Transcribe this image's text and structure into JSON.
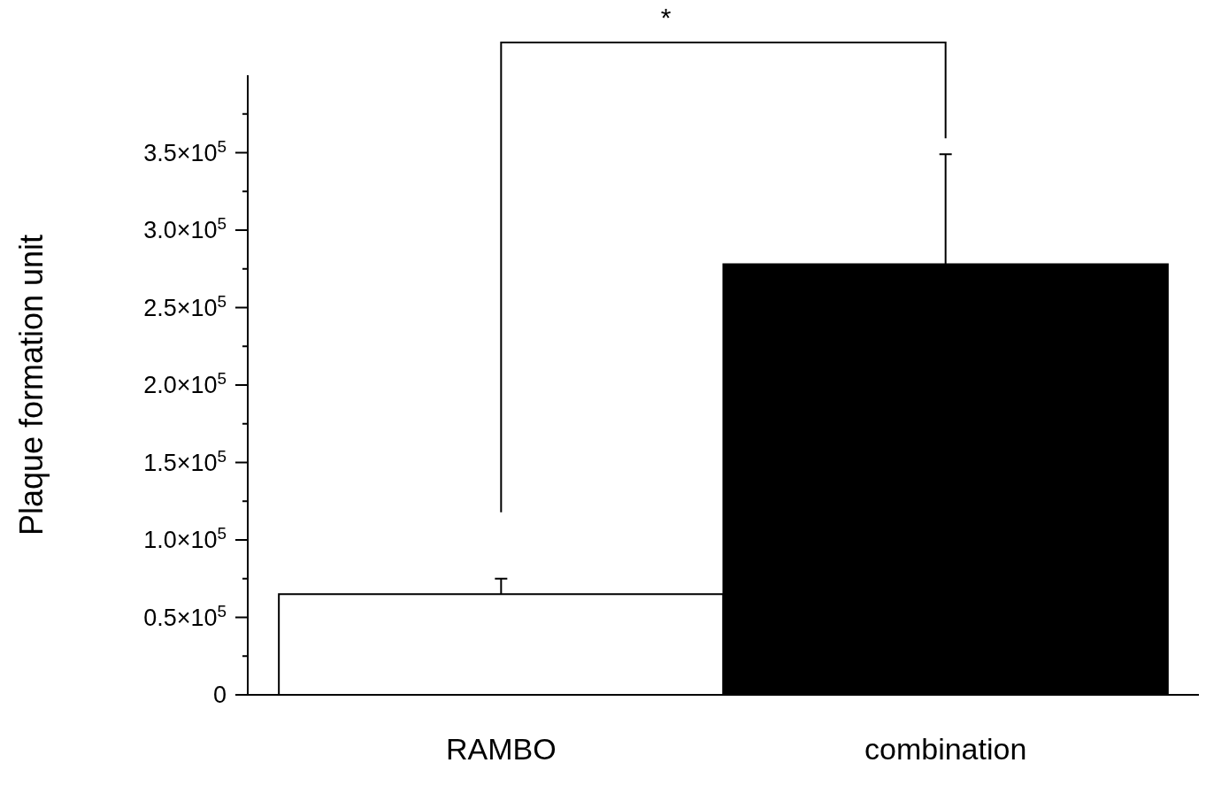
{
  "chart_data": {
    "type": "bar",
    "ylabel": "Plaque formation unit",
    "categories": [
      "RAMBO",
      "combination"
    ],
    "values": [
      65000,
      278000
    ],
    "colors": [
      "#ffffff",
      "#000000"
    ],
    "errors": [
      [
        65000,
        75000
      ],
      [
        278000,
        349000
      ]
    ],
    "ylim": [
      0,
      400000
    ],
    "yticks": [
      0,
      {
        "value": 25000,
        "label": null
      },
      {
        "value": 50000,
        "label": "0.5×10$^{5}$"
      },
      {
        "value": 75000,
        "label": null
      },
      {
        "value": 100000,
        "label": "1.0×10$^{5}$"
      },
      {
        "value": 125000,
        "label": null
      },
      {
        "value": 150000,
        "label": "1.5×10$^{5}$"
      },
      {
        "value": 175000,
        "label": null
      },
      {
        "value": 200000,
        "label": "2.0×10$^{5}$"
      },
      {
        "value": 225000,
        "label": null
      },
      {
        "value": 250000,
        "label": "2.5×10$^{5}$"
      },
      {
        "value": 275000,
        "label": null
      },
      {
        "value": 300000,
        "label": "3.0×10$^{5}$"
      },
      {
        "value": 325000,
        "label": null
      },
      {
        "value": 350000,
        "label": "3.5×10$^{5}$"
      },
      {
        "value": 375000,
        "label": null
      }
    ],
    "annotations": [
      "*"
    ]
  }
}
